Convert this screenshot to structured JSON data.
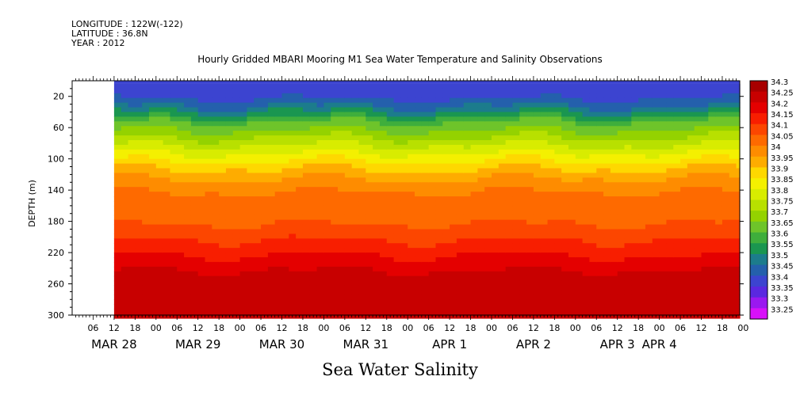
{
  "header": {
    "longitude": "LONGITUDE : 122W(-122)",
    "latitude": "LATITUDE : 36.8N",
    "year": "YEAR : 2012"
  },
  "chart_data": {
    "type": "heatmap",
    "title": "Hourly Gridded MBARI Mooring M1 Sea Water Temperature and Salinity Observations",
    "variable_title": "Sea Water Salinity",
    "ylabel": "DEPTH (m)",
    "ylim": [
      300,
      0
    ],
    "y_reversed": true,
    "y_ticks": [
      20,
      60,
      100,
      140,
      180,
      220,
      260,
      300
    ],
    "x_hour_ticks": [
      "06",
      "12",
      "18",
      "00",
      "06",
      "12",
      "18",
      "00",
      "06",
      "12",
      "18",
      "00",
      "06",
      "12",
      "18",
      "00",
      "06",
      "12",
      "18",
      "00",
      "06",
      "12",
      "18",
      "00",
      "06",
      "12",
      "18",
      "00",
      "06",
      "12",
      "18",
      "00"
    ],
    "x_date_labels": [
      {
        "label": "MAR 28",
        "tick_index": 1
      },
      {
        "label": "MAR 29",
        "tick_index": 5
      },
      {
        "label": "MAR 30",
        "tick_index": 9
      },
      {
        "label": "MAR 31",
        "tick_index": 13
      },
      {
        "label": "APR  1",
        "tick_index": 17
      },
      {
        "label": "APR  2",
        "tick_index": 21
      },
      {
        "label": "APR  3",
        "tick_index": 25
      },
      {
        "label": "APR  4",
        "tick_index": 27
      }
    ],
    "x_start_hour": 0,
    "x_data_start_hour": 12,
    "x_end_hour": 191,
    "colorbar": {
      "levels": [
        "34.3",
        "34.25",
        "34.2",
        "34.15",
        "34.1",
        "34.05",
        "34",
        "33.95",
        "33.9",
        "33.85",
        "33.8",
        "33.75",
        "33.7",
        "33.65",
        "33.6",
        "33.55",
        "33.5",
        "33.45",
        "33.4",
        "33.35",
        "33.3",
        "33.25"
      ],
      "colors": [
        "#a80000",
        "#c80000",
        "#e40000",
        "#f81e00",
        "#fc4600",
        "#fe6a00",
        "#fe8c00",
        "#feac00",
        "#fed800",
        "#f4f000",
        "#d8ec00",
        "#b8e000",
        "#94d200",
        "#6ec42a",
        "#3fae3c",
        "#1a9650",
        "#1c7c8c",
        "#2460ac",
        "#3c44d0",
        "#5a28e0",
        "#9a18f0",
        "#d810f8"
      ]
    },
    "depth_profile_salinity": [
      {
        "depth": 10,
        "salinity": 33.35
      },
      {
        "depth": 30,
        "salinity": 33.45
      },
      {
        "depth": 50,
        "salinity": 33.6
      },
      {
        "depth": 70,
        "salinity": 33.7
      },
      {
        "depth": 90,
        "salinity": 33.8
      },
      {
        "depth": 110,
        "salinity": 33.9
      },
      {
        "depth": 130,
        "salinity": 33.98
      },
      {
        "depth": 150,
        "salinity": 34.02
      },
      {
        "depth": 180,
        "salinity": 34.05
      },
      {
        "depth": 210,
        "salinity": 34.12
      },
      {
        "depth": 240,
        "salinity": 34.2
      },
      {
        "depth": 260,
        "salinity": 34.25
      },
      {
        "depth": 290,
        "salinity": 34.2
      }
    ]
  }
}
